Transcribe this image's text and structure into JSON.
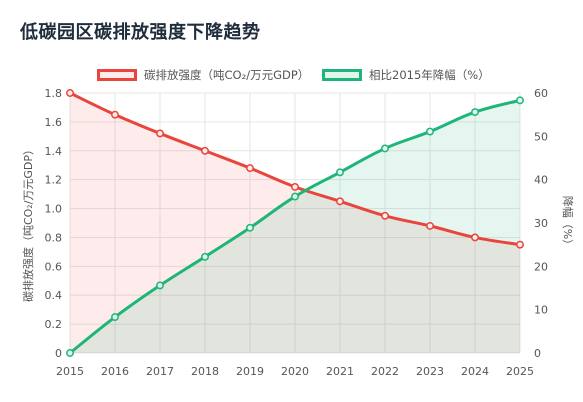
{
  "title": "低碳园区碳排放强度下降趋势",
  "chart_data": {
    "type": "line",
    "categories": [
      "2015",
      "2016",
      "2017",
      "2018",
      "2019",
      "2020",
      "2021",
      "2022",
      "2023",
      "2024",
      "2025"
    ],
    "series": [
      {
        "name": "碳排放强度（吨CO₂/万元GDP）",
        "axis": "left",
        "color": "#e8453c",
        "fill": "#fdeceb",
        "values": [
          1.8,
          1.65,
          1.52,
          1.4,
          1.28,
          1.15,
          1.05,
          0.95,
          0.88,
          0.8,
          0.75
        ]
      },
      {
        "name": "相比2015年降幅（%）",
        "axis": "right",
        "color": "#1fb57a",
        "fill": "#e3f6ee",
        "values": [
          0,
          8.3,
          15.6,
          22.2,
          28.9,
          36.1,
          41.7,
          47.2,
          51.1,
          55.6,
          58.3
        ]
      }
    ],
    "y_left": {
      "label": "碳排放强度（吨CO₂/万元GDP）",
      "lim": [
        0,
        1.8
      ],
      "ticks": [
        "0",
        "0.2",
        "0.4",
        "0.6",
        "0.8",
        "1.0",
        "1.2",
        "1.4",
        "1.6",
        "1.8"
      ]
    },
    "y_right": {
      "label": "降幅（%）",
      "lim": [
        0,
        60
      ],
      "ticks": [
        "0",
        "10",
        "20",
        "30",
        "40",
        "50",
        "60"
      ]
    },
    "grid": true,
    "legend_position": "top"
  }
}
